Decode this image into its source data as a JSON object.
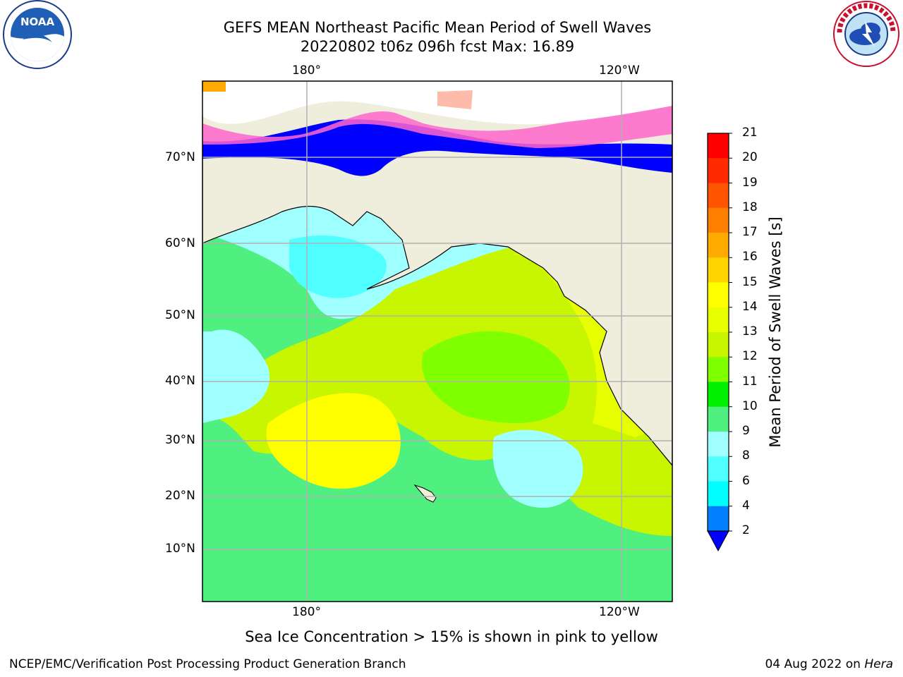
{
  "header": {
    "title_line1": "GEFS MEAN Northeast Pacific Mean Period of Swell Waves",
    "title_line2": "20220802 t06z 096h fcst   Max: 16.89"
  },
  "logos": {
    "left": {
      "icon": "noaa-logo-icon",
      "text": "NOAA"
    },
    "right": {
      "icon": "nws-logo-icon",
      "text": "NATIONAL WEATHER SERVICE"
    }
  },
  "map": {
    "region": "Northeast Pacific",
    "top_axis_ticks": [
      "180°",
      "120°W"
    ],
    "bottom_axis_ticks": [
      "180°",
      "120°W"
    ],
    "left_axis_ticks": [
      "70°N",
      "60°N",
      "50°N",
      "40°N",
      "30°N",
      "20°N",
      "10°N"
    ],
    "colors": {
      "land": "#efeddc",
      "ice_overlay": "pink to yellow"
    }
  },
  "colorbar": {
    "label": "Mean Period of Swell Waves [s]",
    "ticks": [
      "21",
      "20",
      "19",
      "18",
      "17",
      "16",
      "15",
      "14",
      "13",
      "12",
      "11",
      "10",
      "9",
      "8",
      "6",
      "4",
      "2"
    ],
    "colors": [
      "#ff0000",
      "#ff2a00",
      "#ff5500",
      "#ff8000",
      "#ffaa00",
      "#ffd400",
      "#ffff00",
      "#e8ff00",
      "#c8f500",
      "#80ff00",
      "#00f000",
      "#50f080",
      "#a0ffff",
      "#50ffff",
      "#00ffff",
      "#0080ff",
      "#0000ff"
    ],
    "extend_color": "#0000ff"
  },
  "footer": {
    "note": "Sea Ice Concentration > 15% is shown in pink to yellow",
    "left": "NCEP/EMC/Verification Post Processing Product Generation Branch",
    "right_date": "04 Aug 2022 on ",
    "right_host": "Hera"
  }
}
